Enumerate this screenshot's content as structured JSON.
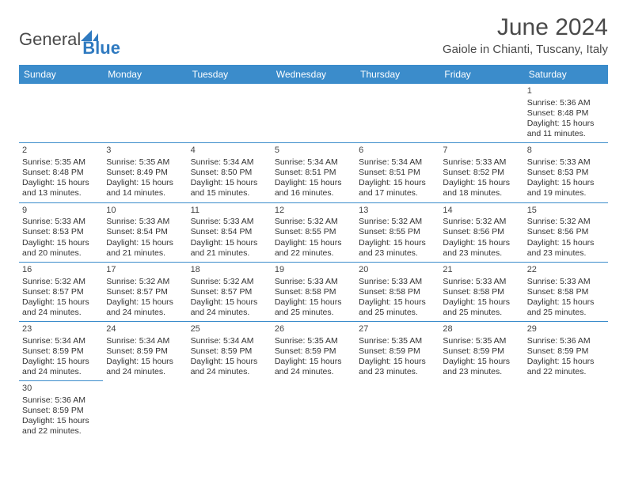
{
  "logo": {
    "text1": "General",
    "text2": "Blue"
  },
  "title": "June 2024",
  "location": "Gaiole in Chianti, Tuscany, Italy",
  "colors": {
    "header_bg": "#3b8ccb",
    "header_text": "#ffffff",
    "border": "#3b8ccb",
    "logo_gray": "#4a4a4a",
    "logo_blue": "#2f7ac0",
    "text": "#333333",
    "bg": "#ffffff"
  },
  "typography": {
    "title_fontsize": 30,
    "location_fontsize": 15,
    "dayheader_fontsize": 12,
    "cell_fontsize": 10.5,
    "logo_fontsize": 22
  },
  "day_headers": [
    "Sunday",
    "Monday",
    "Tuesday",
    "Wednesday",
    "Thursday",
    "Friday",
    "Saturday"
  ],
  "weeks": [
    [
      null,
      null,
      null,
      null,
      null,
      null,
      {
        "n": "1",
        "sunrise": "Sunrise: 5:36 AM",
        "sunset": "Sunset: 8:48 PM",
        "daylight": "Daylight: 15 hours and 11 minutes."
      }
    ],
    [
      {
        "n": "2",
        "sunrise": "Sunrise: 5:35 AM",
        "sunset": "Sunset: 8:48 PM",
        "daylight": "Daylight: 15 hours and 13 minutes."
      },
      {
        "n": "3",
        "sunrise": "Sunrise: 5:35 AM",
        "sunset": "Sunset: 8:49 PM",
        "daylight": "Daylight: 15 hours and 14 minutes."
      },
      {
        "n": "4",
        "sunrise": "Sunrise: 5:34 AM",
        "sunset": "Sunset: 8:50 PM",
        "daylight": "Daylight: 15 hours and 15 minutes."
      },
      {
        "n": "5",
        "sunrise": "Sunrise: 5:34 AM",
        "sunset": "Sunset: 8:51 PM",
        "daylight": "Daylight: 15 hours and 16 minutes."
      },
      {
        "n": "6",
        "sunrise": "Sunrise: 5:34 AM",
        "sunset": "Sunset: 8:51 PM",
        "daylight": "Daylight: 15 hours and 17 minutes."
      },
      {
        "n": "7",
        "sunrise": "Sunrise: 5:33 AM",
        "sunset": "Sunset: 8:52 PM",
        "daylight": "Daylight: 15 hours and 18 minutes."
      },
      {
        "n": "8",
        "sunrise": "Sunrise: 5:33 AM",
        "sunset": "Sunset: 8:53 PM",
        "daylight": "Daylight: 15 hours and 19 minutes."
      }
    ],
    [
      {
        "n": "9",
        "sunrise": "Sunrise: 5:33 AM",
        "sunset": "Sunset: 8:53 PM",
        "daylight": "Daylight: 15 hours and 20 minutes."
      },
      {
        "n": "10",
        "sunrise": "Sunrise: 5:33 AM",
        "sunset": "Sunset: 8:54 PM",
        "daylight": "Daylight: 15 hours and 21 minutes."
      },
      {
        "n": "11",
        "sunrise": "Sunrise: 5:33 AM",
        "sunset": "Sunset: 8:54 PM",
        "daylight": "Daylight: 15 hours and 21 minutes."
      },
      {
        "n": "12",
        "sunrise": "Sunrise: 5:32 AM",
        "sunset": "Sunset: 8:55 PM",
        "daylight": "Daylight: 15 hours and 22 minutes."
      },
      {
        "n": "13",
        "sunrise": "Sunrise: 5:32 AM",
        "sunset": "Sunset: 8:55 PM",
        "daylight": "Daylight: 15 hours and 23 minutes."
      },
      {
        "n": "14",
        "sunrise": "Sunrise: 5:32 AM",
        "sunset": "Sunset: 8:56 PM",
        "daylight": "Daylight: 15 hours and 23 minutes."
      },
      {
        "n": "15",
        "sunrise": "Sunrise: 5:32 AM",
        "sunset": "Sunset: 8:56 PM",
        "daylight": "Daylight: 15 hours and 23 minutes."
      }
    ],
    [
      {
        "n": "16",
        "sunrise": "Sunrise: 5:32 AM",
        "sunset": "Sunset: 8:57 PM",
        "daylight": "Daylight: 15 hours and 24 minutes."
      },
      {
        "n": "17",
        "sunrise": "Sunrise: 5:32 AM",
        "sunset": "Sunset: 8:57 PM",
        "daylight": "Daylight: 15 hours and 24 minutes."
      },
      {
        "n": "18",
        "sunrise": "Sunrise: 5:32 AM",
        "sunset": "Sunset: 8:57 PM",
        "daylight": "Daylight: 15 hours and 24 minutes."
      },
      {
        "n": "19",
        "sunrise": "Sunrise: 5:33 AM",
        "sunset": "Sunset: 8:58 PM",
        "daylight": "Daylight: 15 hours and 25 minutes."
      },
      {
        "n": "20",
        "sunrise": "Sunrise: 5:33 AM",
        "sunset": "Sunset: 8:58 PM",
        "daylight": "Daylight: 15 hours and 25 minutes."
      },
      {
        "n": "21",
        "sunrise": "Sunrise: 5:33 AM",
        "sunset": "Sunset: 8:58 PM",
        "daylight": "Daylight: 15 hours and 25 minutes."
      },
      {
        "n": "22",
        "sunrise": "Sunrise: 5:33 AM",
        "sunset": "Sunset: 8:58 PM",
        "daylight": "Daylight: 15 hours and 25 minutes."
      }
    ],
    [
      {
        "n": "23",
        "sunrise": "Sunrise: 5:34 AM",
        "sunset": "Sunset: 8:59 PM",
        "daylight": "Daylight: 15 hours and 24 minutes."
      },
      {
        "n": "24",
        "sunrise": "Sunrise: 5:34 AM",
        "sunset": "Sunset: 8:59 PM",
        "daylight": "Daylight: 15 hours and 24 minutes."
      },
      {
        "n": "25",
        "sunrise": "Sunrise: 5:34 AM",
        "sunset": "Sunset: 8:59 PM",
        "daylight": "Daylight: 15 hours and 24 minutes."
      },
      {
        "n": "26",
        "sunrise": "Sunrise: 5:35 AM",
        "sunset": "Sunset: 8:59 PM",
        "daylight": "Daylight: 15 hours and 24 minutes."
      },
      {
        "n": "27",
        "sunrise": "Sunrise: 5:35 AM",
        "sunset": "Sunset: 8:59 PM",
        "daylight": "Daylight: 15 hours and 23 minutes."
      },
      {
        "n": "28",
        "sunrise": "Sunrise: 5:35 AM",
        "sunset": "Sunset: 8:59 PM",
        "daylight": "Daylight: 15 hours and 23 minutes."
      },
      {
        "n": "29",
        "sunrise": "Sunrise: 5:36 AM",
        "sunset": "Sunset: 8:59 PM",
        "daylight": "Daylight: 15 hours and 22 minutes."
      }
    ],
    [
      {
        "n": "30",
        "sunrise": "Sunrise: 5:36 AM",
        "sunset": "Sunset: 8:59 PM",
        "daylight": "Daylight: 15 hours and 22 minutes."
      },
      null,
      null,
      null,
      null,
      null,
      null
    ]
  ]
}
